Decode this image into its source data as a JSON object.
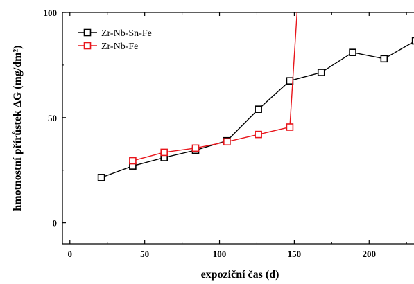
{
  "chart_data": {
    "type": "line",
    "xlabel": "expoziční čas (d)",
    "ylabel": "hmotnostní přírůstek ΔG (mg/dm²)",
    "xlim": [
      -5,
      230
    ],
    "ylim": [
      -10,
      100
    ],
    "xticks": [
      0,
      50,
      100,
      150,
      200
    ],
    "yticks": [
      0,
      50,
      100
    ],
    "grid": false,
    "legend_position": "top-left",
    "series": [
      {
        "name": "Zr-Nb-Sn-Fe",
        "color": "#000000",
        "marker": "square",
        "x": [
          21,
          42,
          63,
          84,
          105,
          126,
          147,
          168,
          189,
          210,
          231
        ],
        "y": [
          21.5,
          27,
          31,
          34.5,
          39,
          54,
          67.5,
          71.5,
          81,
          78,
          86.5
        ]
      },
      {
        "name": "Zr-Nb-Fe",
        "color": "#e8151b",
        "marker": "square",
        "x": [
          42,
          63,
          84,
          105,
          126,
          147,
          152
        ],
        "y": [
          29.5,
          33.5,
          35.5,
          38.5,
          42,
          45.5,
          102
        ],
        "marker_count": 6
      }
    ]
  }
}
